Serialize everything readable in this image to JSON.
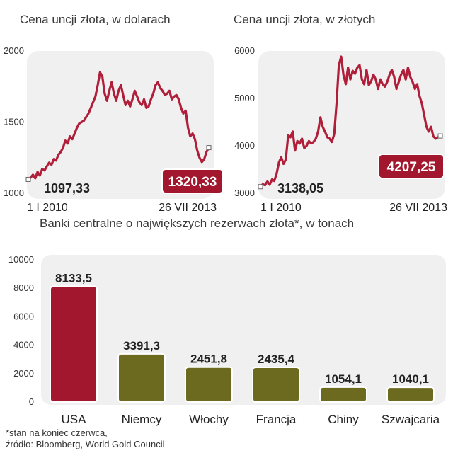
{
  "chart_data": [
    {
      "type": "line",
      "title": "Cena uncji złota, w dolarach",
      "ylim": [
        1000,
        2000
      ],
      "yticks": [
        1000,
        1500,
        2000
      ],
      "x_start_label": "1 I 2010",
      "x_end_label": "26 VII 2013",
      "start_value": 1097.33,
      "start_label": "1097,33",
      "end_value": 1320.33,
      "end_label": "1320,33",
      "series": [
        {
          "values": [
            1097,
            1110,
            1130,
            1105,
            1150,
            1125,
            1170,
            1160,
            1190,
            1215,
            1200,
            1240,
            1230,
            1270,
            1290,
            1320,
            1370,
            1350,
            1400,
            1380,
            1420,
            1460,
            1490,
            1500,
            1510,
            1535,
            1560,
            1600,
            1640,
            1680,
            1760,
            1850,
            1820,
            1700,
            1650,
            1720,
            1780,
            1700,
            1650,
            1720,
            1760,
            1690,
            1620,
            1650,
            1610,
            1660,
            1720,
            1680,
            1640,
            1620,
            1660,
            1600,
            1610,
            1660,
            1700,
            1760,
            1780,
            1740,
            1720,
            1690,
            1700,
            1720,
            1660,
            1680,
            1690,
            1660,
            1600,
            1560,
            1580,
            1460,
            1400,
            1420,
            1380,
            1300,
            1250,
            1220,
            1240,
            1290,
            1320
          ]
        }
      ]
    },
    {
      "type": "line",
      "title": "Cena uncji złota, w złotych",
      "ylim": [
        3000,
        6000
      ],
      "yticks": [
        3000,
        4000,
        5000,
        6000
      ],
      "x_start_label": "1 I 2010",
      "x_end_label": "26 VII 2013",
      "start_value": 3138.05,
      "start_label": "3138,05",
      "end_value": 4207.25,
      "end_label": "4207,25",
      "series": [
        {
          "values": [
            3140,
            3190,
            3170,
            3250,
            3180,
            3290,
            3260,
            3410,
            3650,
            3760,
            3620,
            3710,
            4220,
            4180,
            4300,
            3900,
            4100,
            4050,
            4150,
            3950,
            4000,
            4100,
            4050,
            4080,
            4150,
            4300,
            4600,
            4400,
            4300,
            4180,
            4150,
            4080,
            4250,
            4900,
            5700,
            5880,
            5500,
            5300,
            5650,
            5400,
            5580,
            5520,
            5650,
            5700,
            5400,
            5300,
            5600,
            5280,
            5360,
            5500,
            5400,
            5200,
            5400,
            5300,
            5250,
            5350,
            5500,
            5600,
            5450,
            5200,
            5350,
            5500,
            5600,
            5400,
            5650,
            5450,
            5350,
            5200,
            5300,
            5050,
            4900,
            4650,
            4400,
            4300,
            4400,
            4200,
            4150,
            4180,
            4207
          ]
        }
      ]
    },
    {
      "type": "bar",
      "title": "Banki centralne o największych rezerwach złota*, w tonach",
      "categories": [
        "USA",
        "Niemcy",
        "Włochy",
        "Francja",
        "Chiny",
        "Szwajcaria"
      ],
      "values": [
        8133.5,
        3391.3,
        2451.8,
        2435.4,
        1054.1,
        1040.1
      ],
      "value_labels": [
        "8133,5",
        "3391,3",
        "2451,8",
        "2435,4",
        "1054,1",
        "1040,1"
      ],
      "ylim": [
        0,
        10000
      ],
      "yticks": [
        0,
        2000,
        4000,
        6000,
        8000,
        10000
      ],
      "colors": {
        "highlight": "#a3172e",
        "default": "#6b6a1f"
      }
    }
  ],
  "footnote": {
    "line1": "*stan na koniec czerwca,",
    "line2": "źródło: Bloomberg, World Gold Council"
  },
  "colors": {
    "line": "#b01e3a",
    "panel": "#f0f0f0",
    "label_box": "#a3172e"
  }
}
